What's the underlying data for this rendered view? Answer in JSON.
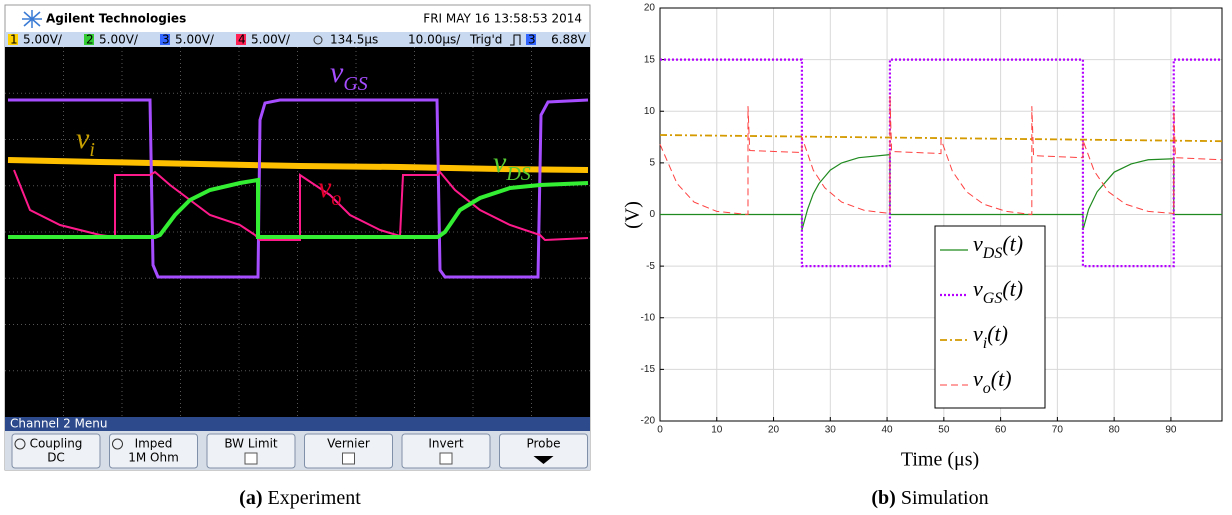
{
  "scope": {
    "brand": "Agilent Technologies",
    "datetime": "FRI MAY 16 13:58:53 2014",
    "channels": [
      {
        "id": "1",
        "scale": "5.00V/"
      },
      {
        "id": "2",
        "scale": "5.00V/"
      },
      {
        "id": "3",
        "scale": "5.00V/"
      },
      {
        "id": "4",
        "scale": "5.00V/"
      }
    ],
    "delay": "134.5µs",
    "timebase": "10.00µs/",
    "trigger": "Trig'd",
    "trigger_channel": "3",
    "trigger_level": "6.88V",
    "traces": [
      {
        "name": "v",
        "subscript": "GS"
      },
      {
        "name": "v",
        "subscript": "i"
      },
      {
        "name": "v",
        "subscript": "DS"
      },
      {
        "name": "v",
        "subscript": "o"
      }
    ],
    "menu_title": "Channel 2  Menu",
    "buttons": [
      {
        "label": "Coupling",
        "value": "DC"
      },
      {
        "label": "Imped",
        "value": "1M Ohm"
      },
      {
        "label": "BW Limit"
      },
      {
        "label": "Vernier"
      },
      {
        "label": "Invert"
      },
      {
        "label": "Probe"
      }
    ],
    "caption_tag": "(a)",
    "caption": "Experiment"
  },
  "chart_data": {
    "type": "line",
    "xlabel": "Time (μs)",
    "ylabel": "(V)",
    "xlim": [
      0,
      99
    ],
    "ylim": [
      -20,
      20
    ],
    "xticks": [
      0,
      10,
      20,
      30,
      40,
      50,
      60,
      70,
      80,
      90
    ],
    "yticks": [
      -20,
      -15,
      -10,
      -5,
      0,
      5,
      10,
      15,
      20
    ],
    "grid": true,
    "series": [
      {
        "name": "v",
        "subscript": "DS",
        "suffix": "(t)",
        "color": "#1f8a1f",
        "style": "solid",
        "x": [
          0,
          25,
          25,
          26,
          27,
          28,
          30,
          32,
          35,
          40.5,
          40.5,
          74.5,
          74.5,
          75.5,
          77,
          80,
          83,
          86,
          90.5,
          90.5,
          99
        ],
        "values": [
          0,
          0,
          -1.5,
          0.5,
          2,
          3,
          4.3,
          5,
          5.5,
          5.8,
          0,
          0,
          -1.5,
          0.5,
          2.2,
          4.1,
          4.9,
          5.3,
          5.4,
          0,
          0
        ]
      },
      {
        "name": "v",
        "subscript": "GS",
        "suffix": "(t)",
        "color": "#b300ff",
        "style": "dotted",
        "x": [
          0,
          25,
          25,
          40.5,
          40.5,
          74.5,
          74.5,
          90.5,
          90.5,
          99
        ],
        "values": [
          15,
          15,
          -5,
          -5,
          15,
          15,
          -5,
          -5,
          15,
          15
        ]
      },
      {
        "name": "v",
        "subscript": "i",
        "suffix": "(t)",
        "color": "#d49a00",
        "style": "dashdot",
        "x": [
          0,
          99
        ],
        "values": [
          7.7,
          7.1
        ]
      },
      {
        "name": "v",
        "subscript": "o",
        "suffix": "(t)",
        "color": "#ff4040",
        "style": "dashed",
        "x": [
          0,
          3,
          6,
          10,
          15.5,
          15.5,
          15.8,
          25,
          25,
          27,
          29,
          32,
          36,
          40.5,
          40.5,
          40.8,
          49.5,
          49.5,
          51.5,
          54,
          57,
          61,
          65.5,
          65.5,
          65.8,
          74.5,
          74.5,
          76.5,
          79,
          82,
          86,
          90.5,
          90.5,
          90.8,
          99
        ],
        "values": [
          6.8,
          3,
          1.2,
          0.3,
          0,
          10.5,
          6.2,
          6,
          7.5,
          4.3,
          2.6,
          1.2,
          0.4,
          0.1,
          11.5,
          6.1,
          5.9,
          7.3,
          4.2,
          2.2,
          1,
          0.3,
          0,
          10.5,
          5.7,
          5.5,
          7.2,
          4.2,
          2.2,
          1,
          0.3,
          0.1,
          10.5,
          5.5,
          5.3
        ]
      }
    ],
    "caption_tag": "(b)",
    "caption": "Simulation"
  }
}
